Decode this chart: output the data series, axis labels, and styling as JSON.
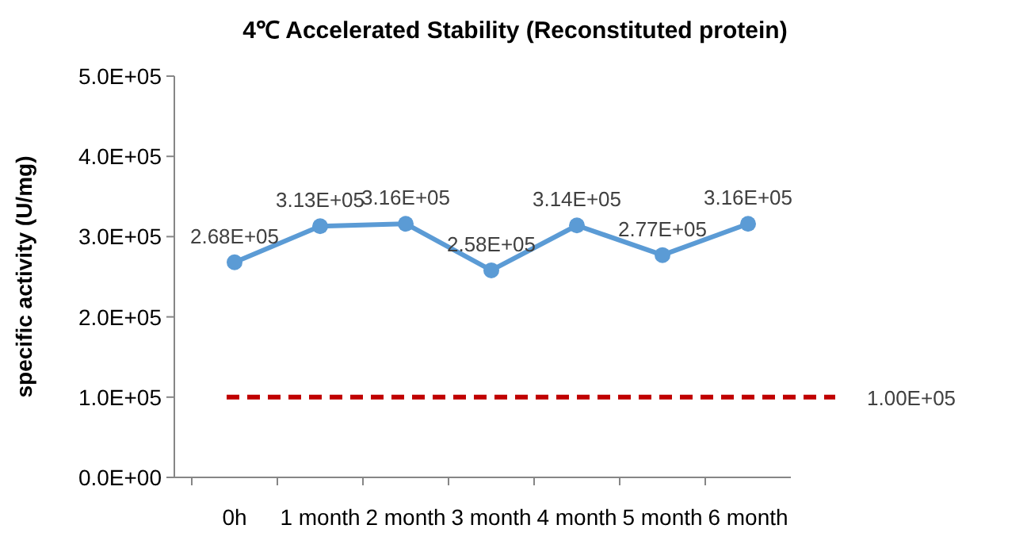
{
  "chart_data": {
    "type": "line",
    "title": "4℃ Accelerated Stability (Reconstituted protein)",
    "ylabel": "specific activity (U/mg)",
    "categories": [
      "0h",
      "1 month",
      "2 month",
      "3 month",
      "4 month",
      "5 month",
      "6 month"
    ],
    "series": [
      {
        "color": "#5b9bd5",
        "values": [
          268000,
          313000,
          316000,
          258000,
          314000,
          277000,
          316000
        ],
        "value_labels": [
          "2.68E+05",
          "3.13E+05",
          "3.16E+05",
          "2.58E+05",
          "3.14E+05",
          "2.77E+05",
          "3.16E+05"
        ]
      }
    ],
    "marker": "circle",
    "ylim": [
      0,
      500000
    ],
    "yticks": [
      {
        "value": 0,
        "label": "0.0E+00"
      },
      {
        "value": 100000,
        "label": "1.0E+05"
      },
      {
        "value": 200000,
        "label": "2.0E+05"
      },
      {
        "value": 300000,
        "label": "3.0E+05"
      },
      {
        "value": 400000,
        "label": "4.0E+05"
      },
      {
        "value": 500000,
        "label": "5.0E+05"
      }
    ],
    "ref_lines": [
      {
        "axis": "y",
        "value": 100000,
        "label": "1.00E+05",
        "color": "#c00000",
        "line_style": "dashed"
      }
    ]
  }
}
